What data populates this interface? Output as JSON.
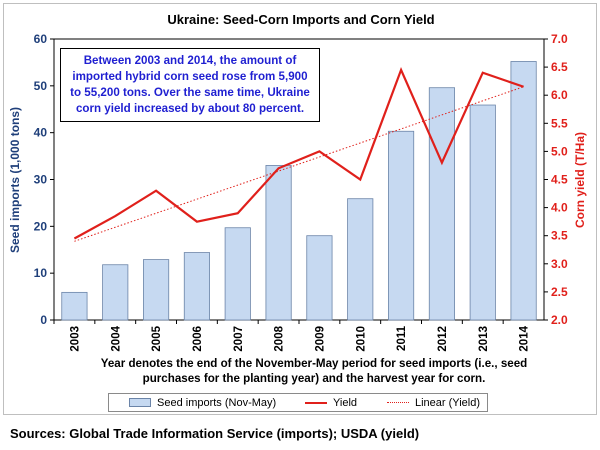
{
  "chart_data": {
    "type": "bar",
    "title": "Ukraine:   Seed-Corn  Imports  and  Corn Yield",
    "categories": [
      "2003",
      "2004",
      "2005",
      "2006",
      "2007",
      "2008",
      "2009",
      "2010",
      "2011",
      "2012",
      "2013",
      "2014"
    ],
    "series": [
      {
        "name": "Seed imports (Nov-May)",
        "type": "bar",
        "axis": "left",
        "color": "#c6d9f1",
        "values": [
          5.9,
          11.8,
          12.9,
          14.4,
          19.7,
          33.0,
          18.0,
          25.9,
          40.3,
          49.6,
          45.9,
          55.2
        ]
      },
      {
        "name": "Yield",
        "type": "line",
        "axis": "right",
        "color": "#e0201b",
        "values": [
          3.45,
          3.85,
          4.3,
          3.75,
          3.9,
          4.7,
          5.0,
          4.5,
          6.45,
          4.8,
          6.4,
          6.15
        ]
      },
      {
        "name": "Linear (Yield)",
        "type": "trendline",
        "axis": "right",
        "color": "#e0201b",
        "values": [
          3.4,
          3.65,
          3.9,
          4.15,
          4.4,
          4.65,
          4.9,
          5.15,
          5.4,
          5.65,
          5.9,
          6.15
        ]
      }
    ],
    "ylabel": "Seed imports (1,000 tons)",
    "ylim": [
      0,
      60
    ],
    "yticks": [
      "0",
      "10",
      "20",
      "30",
      "40",
      "50",
      "60"
    ],
    "y2label": "Corn yield (T/Ha)",
    "y2lim": [
      2.0,
      7.0
    ],
    "y2ticks": [
      "2.0",
      "2.5",
      "3.0",
      "3.5",
      "4.0",
      "4.5",
      "5.0",
      "5.5",
      "6.0",
      "6.5",
      "7.0"
    ],
    "xlabel": "Year denotes the end of the November-May period for seed imports (i.e., seed purchases for the planting year) and the harvest year for corn.",
    "annotation": "Between 2003 and 2014, the amount of imported hybrid corn seed rose from 5,900 to 55,200 tons.  Over the same time, Ukraine corn yield increased by about 80 percent.",
    "legend": "bottom",
    "grid": false
  },
  "source": "Sources:  Global Trade Information Service (imports); USDA (yield)",
  "colors": {
    "bar_fill": "#c6d9f1",
    "bar_stroke": "#6b84a8",
    "line": "#e0201b",
    "left_axis_text": "#1f3f7a",
    "right_axis_text": "#e0201b"
  }
}
